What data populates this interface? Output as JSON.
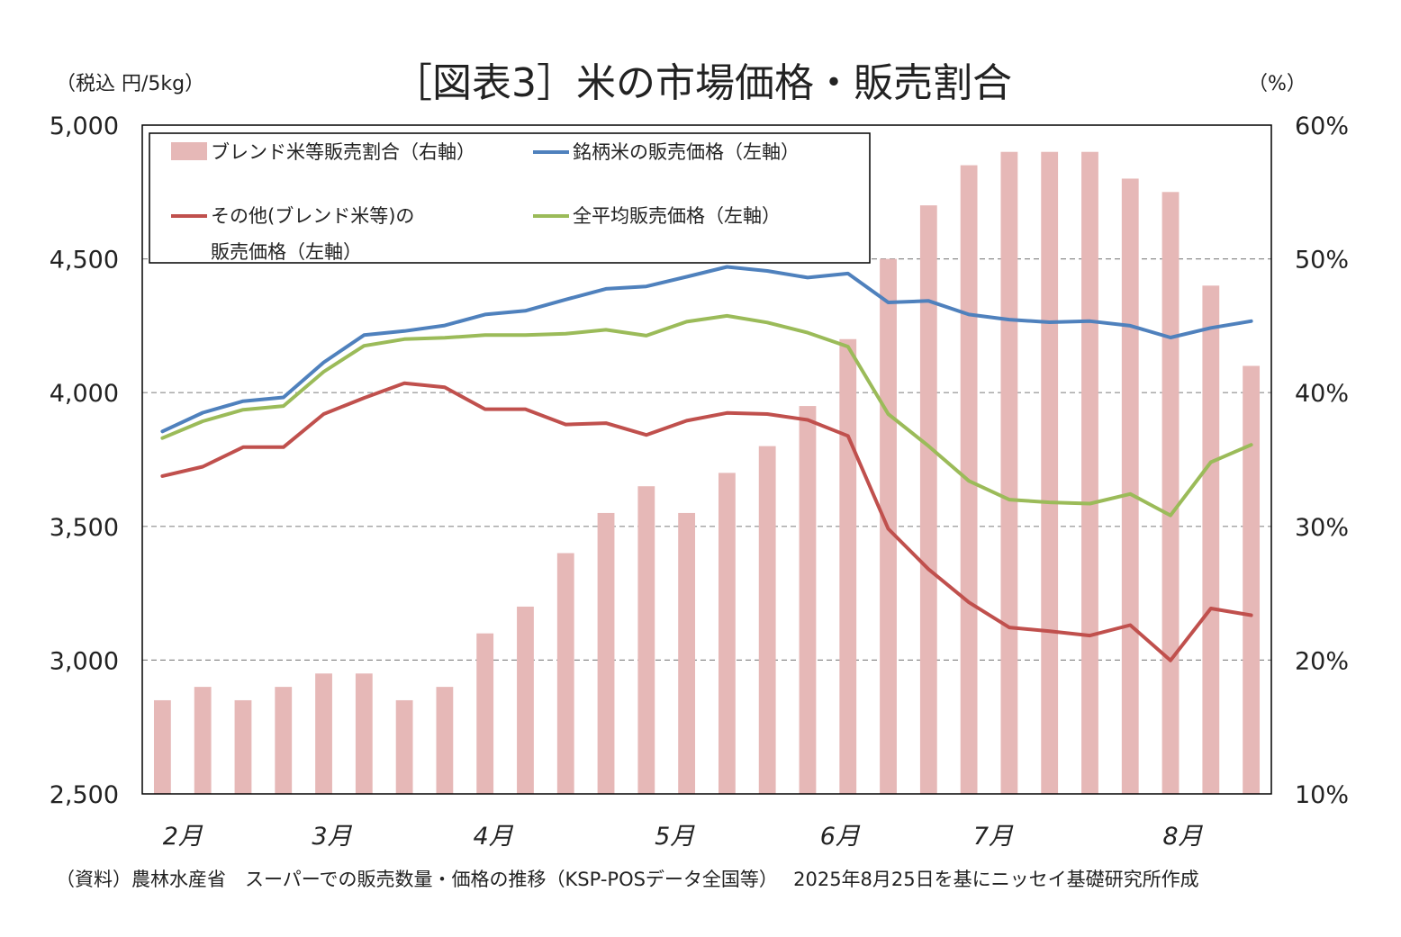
{
  "chart_data": {
    "type": "bar+line",
    "title": "［図表3］米の市場価格・販売割合",
    "left_axis": {
      "unit_label": "（税込 円/5kg）",
      "ylim": [
        2500,
        5000
      ],
      "ticks": [
        2500,
        3000,
        3500,
        4000,
        4500,
        5000
      ],
      "tick_labels": [
        "2,500",
        "3,000",
        "3,500",
        "4,000",
        "4,500",
        "5,000"
      ]
    },
    "right_axis": {
      "unit_label": "（%）",
      "ylim": [
        10,
        60
      ],
      "ticks": [
        10,
        20,
        30,
        40,
        50,
        60
      ],
      "tick_labels": [
        "10%",
        "20%",
        "30%",
        "40%",
        "50%",
        "60%"
      ]
    },
    "x_month_labels": [
      {
        "label": "2月",
        "index": 0.5
      },
      {
        "label": "3月",
        "index": 4.2
      },
      {
        "label": "4月",
        "index": 8.2
      },
      {
        "label": "5月",
        "index": 12.7
      },
      {
        "label": "6月",
        "index": 16.8
      },
      {
        "label": "7月",
        "index": 20.6
      },
      {
        "label": "8月",
        "index": 25.3
      }
    ],
    "grid": "dashed-horizontal",
    "legend_position": "top-left",
    "series": [
      {
        "name": "ブレンド米等販売割合（右軸）",
        "kind": "bar",
        "axis": "right",
        "color": "#e6b8b7",
        "values": [
          17,
          18,
          17,
          18,
          19,
          19,
          17,
          18,
          22,
          24,
          28,
          31,
          33,
          31,
          34,
          36,
          39,
          44,
          50,
          54,
          57,
          58,
          58,
          58,
          56,
          55,
          48,
          42
        ]
      },
      {
        "name": "銘柄米の販売価格（左軸）",
        "kind": "line",
        "axis": "left",
        "color": "#4f81bd",
        "values": [
          3855,
          3925,
          3968,
          3982,
          4113,
          4215,
          4230,
          4251,
          4292,
          4306,
          4348,
          4388,
          4397,
          4433,
          4470,
          4455,
          4430,
          4445,
          4337,
          4343,
          4292,
          4273,
          4263,
          4267,
          4250,
          4206,
          4242,
          4267
        ]
      },
      {
        "name": "その他(ブレンド米等)の販売価格（左軸）",
        "kind": "line",
        "axis": "left",
        "color": "#c0504d",
        "values": [
          3688,
          3723,
          3796,
          3796,
          3920,
          3980,
          4035,
          4020,
          3938,
          3938,
          3881,
          3886,
          3842,
          3895,
          3924,
          3920,
          3898,
          3838,
          3491,
          3340,
          3216,
          3122,
          3108,
          3092,
          3131,
          2999,
          3193,
          3168
        ]
      },
      {
        "name": "全平均販売価格（左軸）",
        "kind": "line",
        "axis": "left",
        "color": "#9bbb59",
        "values": [
          3830,
          3893,
          3936,
          3950,
          4078,
          4175,
          4200,
          4205,
          4215,
          4215,
          4220,
          4235,
          4213,
          4265,
          4287,
          4262,
          4224,
          4172,
          3920,
          3800,
          3670,
          3600,
          3590,
          3585,
          3621,
          3541,
          3740,
          3805
        ]
      }
    ],
    "source": "（資料）農林水産省　スーパーでの販売数量・価格の推移（KSP-POSデータ全国等）　 2025年8月25日を基にニッセイ基礎研究所作成"
  }
}
